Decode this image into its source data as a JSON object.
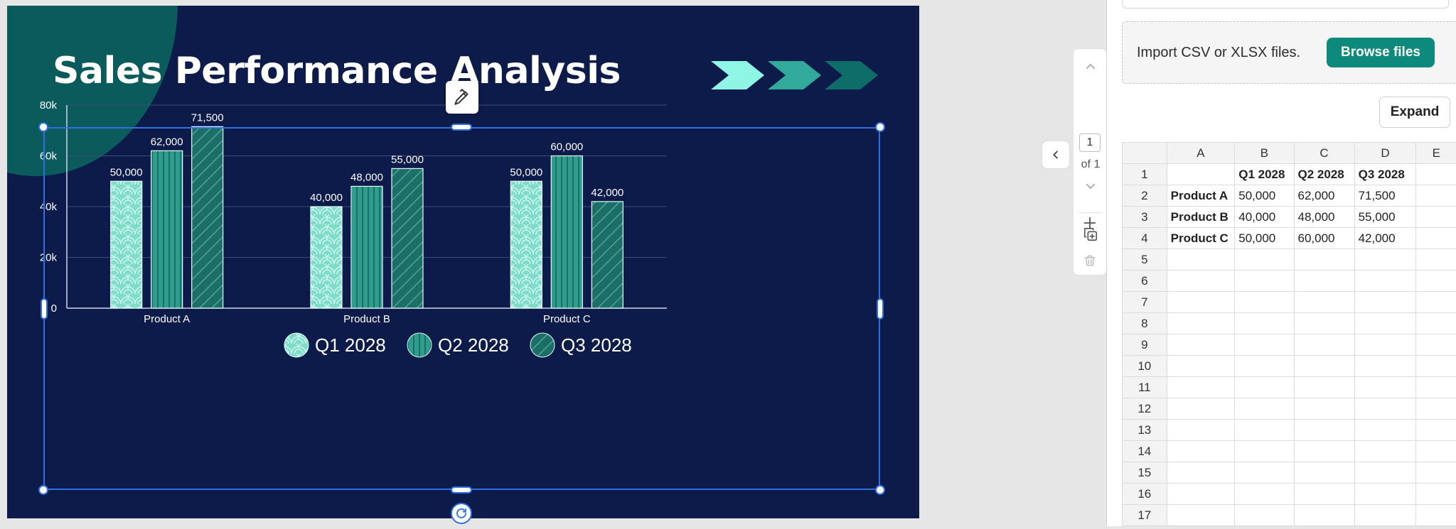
{
  "slide": {
    "title": "Sales Performance Analysis",
    "colors": {
      "background": "#0d1b4b",
      "accent": "#0b5a5c",
      "q1": "#7fdccb",
      "q2": "#2f9d8d",
      "q3": "#1d6e66"
    }
  },
  "chart_data": {
    "type": "bar",
    "title": "",
    "xlabel": "",
    "ylabel": "",
    "categories": [
      "Product A",
      "Product B",
      "Product C"
    ],
    "series": [
      {
        "name": "Q1 2028",
        "values": [
          50000,
          40000,
          50000
        ]
      },
      {
        "name": "Q2 2028",
        "values": [
          62000,
          48000,
          60000
        ]
      },
      {
        "name": "Q3 2028",
        "values": [
          71500,
          55000,
          42000
        ]
      }
    ],
    "data_labels": [
      [
        "50,000",
        "40,000",
        "50,000"
      ],
      [
        "62,000",
        "48,000",
        "60,000"
      ],
      [
        "71,500",
        "55,000",
        "42,000"
      ]
    ],
    "ylim": [
      0,
      80000
    ],
    "yticks": [
      0,
      20000,
      40000,
      60000,
      80000
    ],
    "ytick_labels": [
      "0",
      "20k",
      "40k",
      "60k",
      "80k"
    ],
    "grid": true,
    "legend": "bottom-center"
  },
  "nav": {
    "page_current": "1",
    "page_total": "of 1"
  },
  "panel": {
    "import_text": "Import CSV or XLSX files.",
    "browse_label": "Browse files",
    "expand_label": "Expand"
  },
  "sheet": {
    "columns": [
      "A",
      "B",
      "C",
      "D",
      "E"
    ],
    "rows": [
      [
        "",
        "Q1 2028",
        "Q2 2028",
        "Q3 2028",
        ""
      ],
      [
        "Product A",
        "50,000",
        "62,000",
        "71,500",
        ""
      ],
      [
        "Product B",
        "40,000",
        "48,000",
        "55,000",
        ""
      ],
      [
        "Product C",
        "50,000",
        "60,000",
        "42,000",
        ""
      ],
      [
        "",
        "",
        "",
        "",
        ""
      ],
      [
        "",
        "",
        "",
        "",
        ""
      ],
      [
        "",
        "",
        "",
        "",
        ""
      ],
      [
        "",
        "",
        "",
        "",
        ""
      ],
      [
        "",
        "",
        "",
        "",
        ""
      ],
      [
        "",
        "",
        "",
        "",
        ""
      ],
      [
        "",
        "",
        "",
        "",
        ""
      ],
      [
        "",
        "",
        "",
        "",
        ""
      ],
      [
        "",
        "",
        "",
        "",
        ""
      ],
      [
        "",
        "",
        "",
        "",
        ""
      ],
      [
        "",
        "",
        "",
        "",
        ""
      ],
      [
        "",
        "",
        "",
        "",
        ""
      ],
      [
        "",
        "",
        "",
        "",
        ""
      ]
    ]
  },
  "icons": {
    "chart_style": "chart-style-icon",
    "rotate": "rotate-icon",
    "collapse": "chevron-left-icon",
    "page_up": "chevron-up-icon",
    "page_down": "chevron-down-icon",
    "duplicate": "duplicate-page-icon",
    "add": "add-page-icon",
    "delete": "trash-icon"
  }
}
